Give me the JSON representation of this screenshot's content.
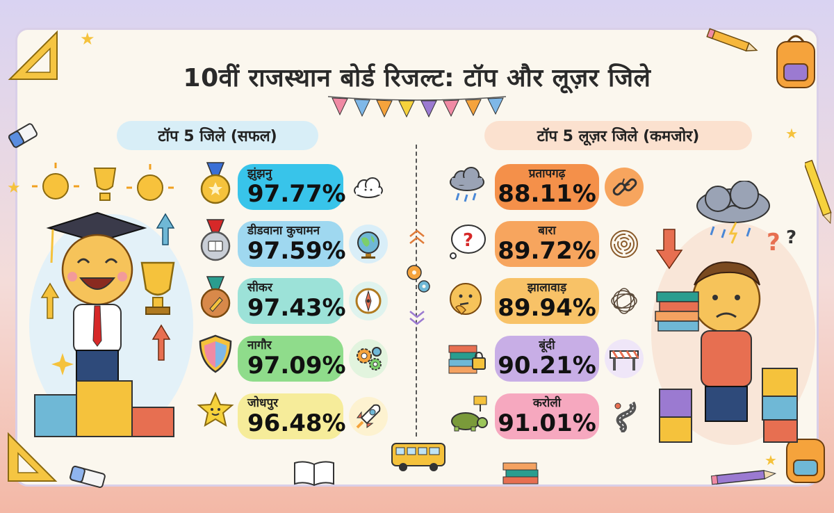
{
  "title": "10वीं राजस्थान बोर्ड रिजल्ट: टॉप और लूज़र जिले",
  "top_section": {
    "heading": "टॉप 5 जिले (सफल)",
    "items": [
      {
        "name": "झुंझनु",
        "pct": "97.77%",
        "color": "#38c4ea",
        "icon": "cloud-icon"
      },
      {
        "name": "डीडवाना कुचामन",
        "pct": "97.59%",
        "color": "#9fd8f0",
        "icon": "globe-icon"
      },
      {
        "name": "सीकर",
        "pct": "97.43%",
        "color": "#9ce2d8",
        "icon": "compass-icon"
      },
      {
        "name": "नागौर",
        "pct": "97.09%",
        "color": "#8fdc8b",
        "icon": "gears-icon"
      },
      {
        "name": "जोधपुर",
        "pct": "96.48%",
        "color": "#f6ec9a",
        "icon": "rocket-icon"
      }
    ]
  },
  "loser_section": {
    "heading": "टॉप 5 लूज़र जिले (कमजोर)",
    "items": [
      {
        "name": "प्रतापगढ़",
        "pct": "88.11%",
        "color": "#f4904a",
        "icon": "broken-chain-icon"
      },
      {
        "name": "बारा",
        "pct": "89.72%",
        "color": "#f7a55e",
        "icon": "maze-icon"
      },
      {
        "name": "झालावाड़",
        "pct": "89.94%",
        "color": "#f8c267",
        "icon": "tangle-icon"
      },
      {
        "name": "बूंदी",
        "pct": "90.21%",
        "color": "#c8aee6",
        "icon": "barrier-icon"
      },
      {
        "name": "करोली",
        "pct": "91.01%",
        "color": "#f6a8bf",
        "icon": "winding-road-icon"
      }
    ]
  }
}
